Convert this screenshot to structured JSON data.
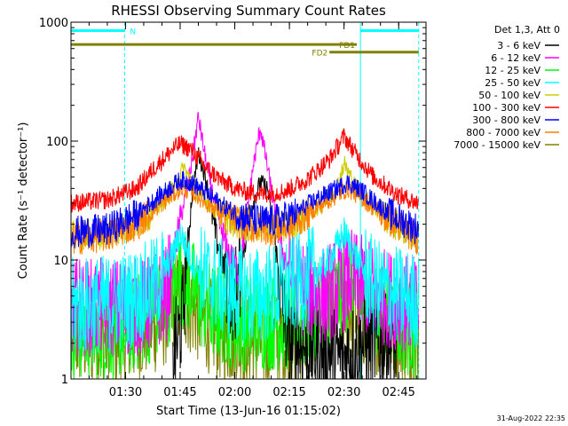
{
  "chart_data": {
    "type": "line",
    "title": "RHESSI Observing Summary Count Rates",
    "xlabel": "Start Time (13-Jun-16 01:15:02)",
    "ylabel": "Count Rate (s⁻¹ detector⁻¹)",
    "yscale": "log",
    "ylim": [
      1,
      1000
    ],
    "xlim": [
      "01:15:02",
      "02:52:30"
    ],
    "x_ticks": [
      "01:30",
      "01:45",
      "02:00",
      "02:15",
      "02:30",
      "02:45"
    ],
    "y_ticks": [
      "1",
      "10",
      "100",
      "1000"
    ],
    "legend_title": "Det 1,3, Att 0",
    "legend_position": "right",
    "footer": "31-Aug-2022 22:35",
    "time_markers": [
      {
        "label": "N",
        "start": "01:15:02",
        "end": "01:29:45",
        "level": 850,
        "color": "#00ffff"
      },
      {
        "label": "FD1",
        "start": "01:15:02",
        "end": "02:33:30",
        "level": 650,
        "color": "#808000"
      },
      {
        "label": "FD2",
        "start": "02:26:00",
        "end": "02:50:30",
        "level": 560,
        "color": "#808000"
      },
      {
        "label": "",
        "start": "02:34:30",
        "end": "02:50:30",
        "level": 850,
        "color": "#00ffff"
      }
    ],
    "dashed_lines": [
      "01:29:45",
      "02:50:30"
    ],
    "solid_lines": [
      "01:15:02",
      "02:34:30"
    ],
    "series": [
      {
        "name": "3 - 6 keV",
        "color": "#000000",
        "points": [
          [
            "01:43:00",
            1.5
          ],
          [
            "01:45:30",
            3
          ],
          [
            "01:48:00",
            30
          ],
          [
            "01:50:00",
            80
          ],
          [
            "01:52:00",
            50
          ],
          [
            "01:55:00",
            15
          ],
          [
            "01:58:30",
            6
          ],
          [
            "02:00:00",
            5
          ],
          [
            "02:01:30",
            8
          ],
          [
            "02:04:00",
            25
          ],
          [
            "02:07:00",
            45
          ],
          [
            "02:09:00",
            40
          ],
          [
            "02:11:00",
            15
          ],
          [
            "02:13:00",
            4
          ],
          [
            "02:15:00",
            2
          ],
          [
            "02:30:00",
            1.5
          ],
          [
            "02:35:00",
            2
          ],
          [
            "02:45:00",
            2
          ]
        ]
      },
      {
        "name": "6 - 12 keV",
        "color": "#ff00ff",
        "points": [
          [
            "01:15:02",
            4
          ],
          [
            "01:25:00",
            4
          ],
          [
            "01:35:00",
            4
          ],
          [
            "01:41:00",
            5
          ],
          [
            "01:44:00",
            15
          ],
          [
            "01:46:00",
            30
          ],
          [
            "01:48:00",
            60
          ],
          [
            "01:50:00",
            160
          ],
          [
            "01:52:00",
            70
          ],
          [
            "01:55:00",
            25
          ],
          [
            "01:58:00",
            12
          ],
          [
            "02:01:00",
            8
          ],
          [
            "02:03:00",
            20
          ],
          [
            "02:05:00",
            60
          ],
          [
            "02:07:00",
            130
          ],
          [
            "02:09:00",
            60
          ],
          [
            "02:11:00",
            25
          ],
          [
            "02:13:00",
            12
          ],
          [
            "02:15:00",
            8
          ],
          [
            "02:18:00",
            6
          ],
          [
            "02:24:00",
            5
          ],
          [
            "02:32:00",
            7
          ],
          [
            "02:40:00",
            5
          ],
          [
            "02:50:30",
            4
          ]
        ]
      },
      {
        "name": "12 - 25 keV",
        "color": "#00ff00",
        "points": [
          [
            "01:15:02",
            2.5
          ],
          [
            "01:30:00",
            2.6
          ],
          [
            "01:40:00",
            4
          ],
          [
            "01:45:00",
            7
          ],
          [
            "01:48:00",
            6
          ],
          [
            "01:52:00",
            4
          ],
          [
            "02:00:00",
            3
          ],
          [
            "02:10:00",
            3
          ],
          [
            "02:20:00",
            3
          ],
          [
            "02:28:00",
            5
          ],
          [
            "02:32:00",
            7
          ],
          [
            "02:36:00",
            4
          ],
          [
            "02:45:00",
            3
          ],
          [
            "02:50:30",
            2.5
          ]
        ]
      },
      {
        "name": "25 - 50 keV",
        "color": "#00ffff",
        "points": [
          [
            "01:15:02",
            4
          ],
          [
            "01:30:00",
            4.5
          ],
          [
            "01:38:00",
            6
          ],
          [
            "01:43:00",
            11
          ],
          [
            "01:45:00",
            17
          ],
          [
            "01:48:00",
            10
          ],
          [
            "01:52:00",
            7
          ],
          [
            "01:58:00",
            5.5
          ],
          [
            "02:05:00",
            5
          ],
          [
            "02:12:00",
            5.5
          ],
          [
            "02:20:00",
            7
          ],
          [
            "02:26:00",
            10
          ],
          [
            "02:30:00",
            17
          ],
          [
            "02:33:00",
            11
          ],
          [
            "02:38:00",
            6
          ],
          [
            "02:45:00",
            5
          ],
          [
            "02:50:30",
            4.5
          ]
        ]
      },
      {
        "name": "50 - 100 keV",
        "color": "#cccc00",
        "points": [
          [
            "01:15:02",
            16
          ],
          [
            "01:25:00",
            17
          ],
          [
            "01:33:00",
            20
          ],
          [
            "01:40:00",
            30
          ],
          [
            "01:44:00",
            45
          ],
          [
            "01:46:00",
            60
          ],
          [
            "01:49:00",
            40
          ],
          [
            "01:53:00",
            30
          ],
          [
            "01:58:00",
            22
          ],
          [
            "02:05:00",
            19
          ],
          [
            "02:12:00",
            19
          ],
          [
            "02:18:00",
            22
          ],
          [
            "02:24:00",
            30
          ],
          [
            "02:28:00",
            40
          ],
          [
            "02:30:00",
            65
          ],
          [
            "02:33:00",
            42
          ],
          [
            "02:38:00",
            28
          ],
          [
            "02:45:00",
            19
          ],
          [
            "02:50:30",
            16
          ]
        ]
      },
      {
        "name": "100 - 300 keV",
        "color": "#ff0000",
        "points": [
          [
            "01:15:02",
            30
          ],
          [
            "01:25:00",
            32
          ],
          [
            "01:33:00",
            40
          ],
          [
            "01:38:00",
            60
          ],
          [
            "01:43:00",
            85
          ],
          [
            "01:45:00",
            95
          ],
          [
            "01:48:00",
            85
          ],
          [
            "01:52:00",
            60
          ],
          [
            "01:57:00",
            45
          ],
          [
            "02:02:00",
            38
          ],
          [
            "02:08:00",
            36
          ],
          [
            "02:14:00",
            38
          ],
          [
            "02:20:00",
            48
          ],
          [
            "02:26:00",
            70
          ],
          [
            "02:30:00",
            110
          ],
          [
            "02:33:00",
            80
          ],
          [
            "02:38:00",
            50
          ],
          [
            "02:45:00",
            35
          ],
          [
            "02:50:30",
            30
          ]
        ]
      },
      {
        "name": "300 - 800 keV",
        "color": "#0000ff",
        "points": [
          [
            "01:15:02",
            17
          ],
          [
            "01:25:00",
            18
          ],
          [
            "01:33:00",
            24
          ],
          [
            "01:40:00",
            36
          ],
          [
            "01:45:00",
            47
          ],
          [
            "01:48:00",
            45
          ],
          [
            "01:53:00",
            35
          ],
          [
            "01:58:00",
            27
          ],
          [
            "02:04:00",
            22
          ],
          [
            "02:10:00",
            21
          ],
          [
            "02:16:00",
            24
          ],
          [
            "02:22:00",
            32
          ],
          [
            "02:28:00",
            40
          ],
          [
            "02:31:00",
            45
          ],
          [
            "02:35:00",
            38
          ],
          [
            "02:42:00",
            25
          ],
          [
            "02:50:30",
            18
          ]
        ]
      },
      {
        "name": "800 - 7000 keV",
        "color": "#ff8000",
        "points": [
          [
            "01:15:02",
            15
          ],
          [
            "01:25:00",
            16
          ],
          [
            "01:33:00",
            20
          ],
          [
            "01:40:00",
            30
          ],
          [
            "01:45:00",
            40
          ],
          [
            "01:48:00",
            38
          ],
          [
            "01:53:00",
            29
          ],
          [
            "01:58:00",
            23
          ],
          [
            "02:04:00",
            19
          ],
          [
            "02:10:00",
            18
          ],
          [
            "02:16:00",
            20
          ],
          [
            "02:22:00",
            27
          ],
          [
            "02:28:00",
            35
          ],
          [
            "02:31:00",
            40
          ],
          [
            "02:35:00",
            33
          ],
          [
            "02:42:00",
            22
          ],
          [
            "02:50:30",
            15
          ]
        ]
      },
      {
        "name": "7000 - 15000 keV",
        "color": "#808000",
        "points": [
          [
            "01:15:02",
            2.2
          ],
          [
            "01:30:00",
            2.2
          ],
          [
            "01:40:00",
            3
          ],
          [
            "01:45:00",
            5
          ],
          [
            "01:48:00",
            4
          ],
          [
            "01:55:00",
            2.5
          ],
          [
            "02:05:00",
            2
          ],
          [
            "02:15:00",
            2.2
          ],
          [
            "02:25:00",
            3
          ],
          [
            "02:30:00",
            4
          ],
          [
            "02:36:00",
            3
          ],
          [
            "02:45:00",
            2.5
          ],
          [
            "02:50:30",
            2
          ]
        ]
      }
    ]
  }
}
